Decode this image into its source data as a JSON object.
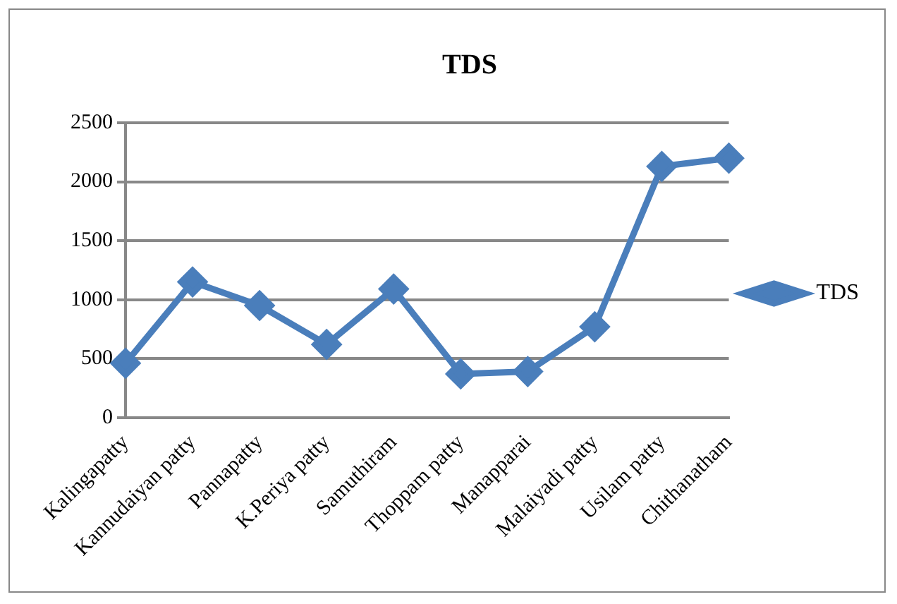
{
  "chart_data": {
    "type": "line",
    "title": "TDS",
    "categories": [
      "Kalingapatty",
      "Kannudaiyan patty",
      "Pannapatty",
      "K.Periya patty",
      "Samuthiram",
      "Thoppam patty",
      "Manapparai",
      "Malaiyadi patty",
      "Usilam patty",
      "Chithanatham"
    ],
    "series": [
      {
        "name": "TDS",
        "color": "#4a7ebb",
        "values": [
          460,
          1150,
          950,
          620,
          1090,
          370,
          390,
          770,
          2130,
          2200
        ]
      }
    ],
    "ylim": [
      0,
      2500
    ],
    "yticks": [
      0,
      500,
      1000,
      1500,
      2000,
      2500
    ],
    "grid": "y",
    "legend": "right",
    "marker": "diamond",
    "line_style": "solid"
  }
}
